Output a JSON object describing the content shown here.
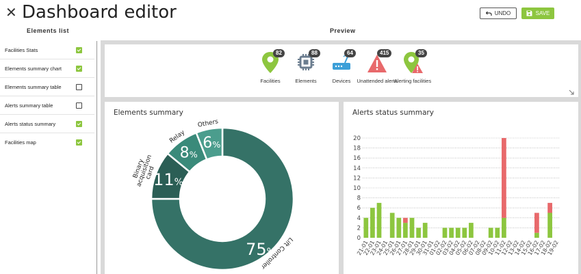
{
  "header": {
    "title": "Dashboard editor",
    "undo_label": "UNDO",
    "save_label": "SAVE",
    "elements_list_label": "Elements list",
    "preview_label": "Preview"
  },
  "sidebar": {
    "items": [
      {
        "label": "Facilities Stats",
        "checked": true
      },
      {
        "label": "Elements summary chart",
        "checked": true
      },
      {
        "label": "Elements summary table",
        "checked": false
      },
      {
        "label": "Alerts summary table",
        "checked": false
      },
      {
        "label": "Alerts status summary",
        "checked": true
      },
      {
        "label": "Facilities map",
        "checked": true
      }
    ]
  },
  "stats": [
    {
      "label": "Facilities",
      "count": "82",
      "icon": "map-pin-icon"
    },
    {
      "label": "Elements",
      "count": "88",
      "icon": "chip-icon"
    },
    {
      "label": "Devices",
      "count": "64",
      "icon": "router-icon"
    },
    {
      "label": "Unattended alerts",
      "count": "415",
      "icon": "warning-icon"
    },
    {
      "label": "Alerting facilities",
      "count": "35",
      "icon": "alert-pin-icon"
    }
  ],
  "colors": {
    "accent_green": "#8dc63f",
    "alert_red": "#e8696b",
    "donut_main": "#357267",
    "donut_dark": "#2b5e55",
    "donut_mid": "#3a8a7a",
    "donut_light": "#4b9d8d",
    "device_blue": "#3c9fd8",
    "chip_gray": "#6b7d8f"
  },
  "elements_summary": {
    "title": "Elements summary",
    "chart_data": {
      "type": "pie",
      "categories": [
        "Lift Controller",
        "Binary acquisition card",
        "Relay",
        "Others"
      ],
      "values": [
        75,
        11,
        8,
        6
      ],
      "unit": "%"
    }
  },
  "alerts_summary": {
    "title": "Alerts status summary",
    "chart_data": {
      "type": "bar",
      "stacked": true,
      "categories": [
        "21-01",
        "22-01",
        "23-01",
        "24-01",
        "25-01",
        "26-01",
        "27-01",
        "28-01",
        "29-01",
        "30-01",
        "31-01",
        "01-02",
        "02-02",
        "03-02",
        "04-02",
        "05-02",
        "06-02",
        "07-02",
        "08-02",
        "09-02",
        "10-02",
        "11-02",
        "12-02",
        "13-02",
        "14-02",
        "15-02",
        "16-02",
        "17-02",
        "18-02",
        "19-02"
      ],
      "series": [
        {
          "values": [
            4,
            6,
            7,
            0,
            5,
            4,
            3,
            4,
            2,
            3,
            0,
            0,
            2,
            2,
            2,
            2,
            3,
            0,
            0,
            2,
            2,
            4,
            0,
            0,
            0,
            0,
            1,
            0,
            5,
            0
          ]
        },
        {
          "values": [
            0,
            0,
            0,
            0,
            0,
            0,
            1,
            0,
            0,
            0,
            0,
            0,
            0,
            0,
            0,
            0,
            0,
            0,
            0,
            0,
            0,
            16,
            0,
            0,
            0,
            0,
            4,
            0,
            2,
            0
          ]
        }
      ],
      "y_ticks": [
        0,
        2,
        4,
        6,
        8,
        10,
        12,
        14,
        16,
        18,
        20
      ],
      "ylim": [
        0,
        20
      ],
      "grid": true
    }
  }
}
